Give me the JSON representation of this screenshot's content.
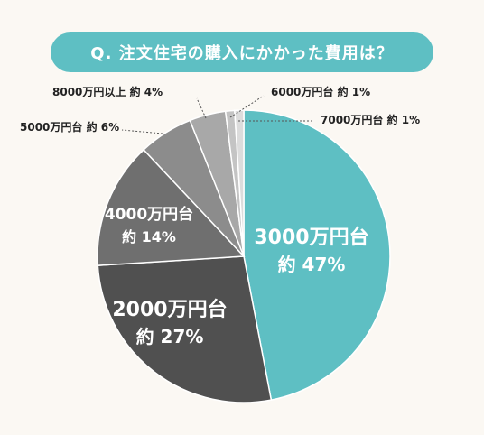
{
  "title": "Q. 注文住宅の購入にかかった費用は？",
  "chart_data": {
    "type": "pie",
    "title": "Q. 注文住宅の購入にかかった費用は？",
    "slices": [
      {
        "label": "3000万円台",
        "value_text": "約 47%",
        "value": 47,
        "color": "#5ebfc3"
      },
      {
        "label": "2000万円台",
        "value_text": "約 27%",
        "value": 27,
        "color": "#505050"
      },
      {
        "label": "4000万円台",
        "value_text": "約 14%",
        "value": 14,
        "color": "#6f6f6f"
      },
      {
        "label": "5000万円台",
        "value_text": "約 6%",
        "value": 6,
        "color": "#8c8c8c"
      },
      {
        "label": "8000万円以上",
        "value_text": "約 4%",
        "value": 4,
        "color": "#a8a8a8"
      },
      {
        "label": "6000万円台",
        "value_text": "約 1%",
        "value": 1,
        "color": "#c4c4c4"
      },
      {
        "label": "7000万円台",
        "value_text": "約 1%",
        "value": 1,
        "color": "#dcdcdc"
      }
    ]
  }
}
